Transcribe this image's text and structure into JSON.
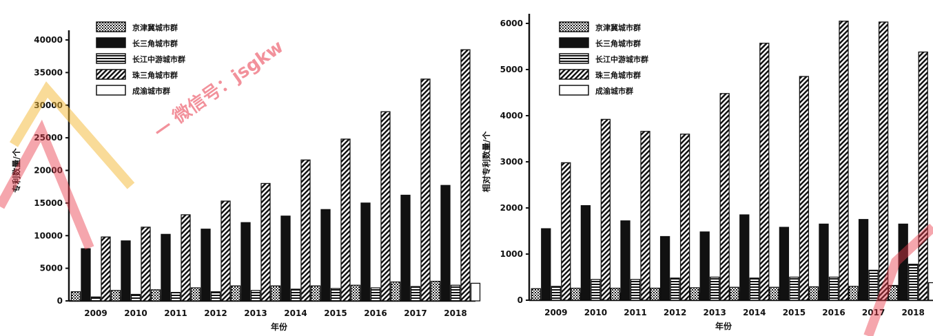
{
  "colors": {
    "background": "#ffffff",
    "ink": "#111111",
    "watermark_red": "#e8394a",
    "watermark_yellow": "#f4b731"
  },
  "legend": [
    "京津冀城市群",
    "长三角城市群",
    "长江中游城市群",
    "珠三角城市群",
    "成渝城市群"
  ],
  "watermark": {
    "text": "微信号：jsgkw",
    "dash": "—"
  },
  "chart_data": [
    {
      "type": "bar",
      "ylabel": "专利数量/个",
      "xlabel": "年份",
      "categories": [
        "2009",
        "2010",
        "2011",
        "2012",
        "2013",
        "2014",
        "2015",
        "2016",
        "2017",
        "2018"
      ],
      "ylim": [
        0,
        40000
      ],
      "yticks": [
        0,
        5000,
        10000,
        15000,
        20000,
        25000,
        30000,
        35000,
        40000
      ],
      "legend_position": "top-left",
      "series": [
        {
          "name": "京津冀城市群",
          "values": [
            1400,
            1600,
            1700,
            2000,
            2300,
            2300,
            2300,
            2400,
            2900,
            3000
          ],
          "pattern": "dense"
        },
        {
          "name": "长三角城市群",
          "values": [
            8000,
            9200,
            10200,
            11000,
            12000,
            13000,
            14000,
            15000,
            16200,
            17700
          ],
          "pattern": "solid"
        },
        {
          "name": "长江中游城市群",
          "values": [
            600,
            1000,
            1300,
            1400,
            1600,
            1800,
            1900,
            2000,
            2200,
            2400
          ],
          "pattern": "lines"
        },
        {
          "name": "珠三角城市群",
          "values": [
            9800,
            11300,
            13200,
            15300,
            18000,
            21600,
            24800,
            29000,
            34000,
            38500
          ],
          "pattern": "hatch"
        },
        {
          "name": "成渝城市群",
          "values": [
            600,
            800,
            900,
            1100,
            1200,
            1300,
            1300,
            1600,
            2400,
            2700
          ],
          "pattern": "empty"
        }
      ]
    },
    {
      "type": "bar",
      "ylabel": "相对专利数量/个",
      "xlabel": "年份",
      "categories": [
        "2009",
        "2010",
        "2011",
        "2012",
        "2013",
        "2014",
        "2015",
        "2016",
        "2017",
        "2018"
      ],
      "ylim": [
        0,
        6000
      ],
      "yticks": [
        0,
        1000,
        2000,
        3000,
        4000,
        5000,
        6000
      ],
      "legend_position": "top-left",
      "series": [
        {
          "name": "京津冀城市群",
          "values": [
            250,
            260,
            260,
            260,
            270,
            280,
            280,
            290,
            300,
            310
          ],
          "pattern": "dense"
        },
        {
          "name": "长三角城市群",
          "values": [
            1550,
            2050,
            1720,
            1380,
            1480,
            1850,
            1580,
            1650,
            1750,
            1650
          ],
          "pattern": "solid"
        },
        {
          "name": "长江中游城市群",
          "values": [
            300,
            450,
            450,
            480,
            500,
            480,
            500,
            500,
            650,
            780
          ],
          "pattern": "lines"
        },
        {
          "name": "珠三角城市群",
          "values": [
            2980,
            3920,
            3660,
            3600,
            4480,
            5570,
            4850,
            6050,
            6030,
            5380
          ],
          "pattern": "hatch"
        },
        {
          "name": "成渝城市群",
          "values": [
            150,
            150,
            260,
            150,
            180,
            230,
            200,
            180,
            320,
            380
          ],
          "pattern": "empty"
        }
      ]
    }
  ]
}
